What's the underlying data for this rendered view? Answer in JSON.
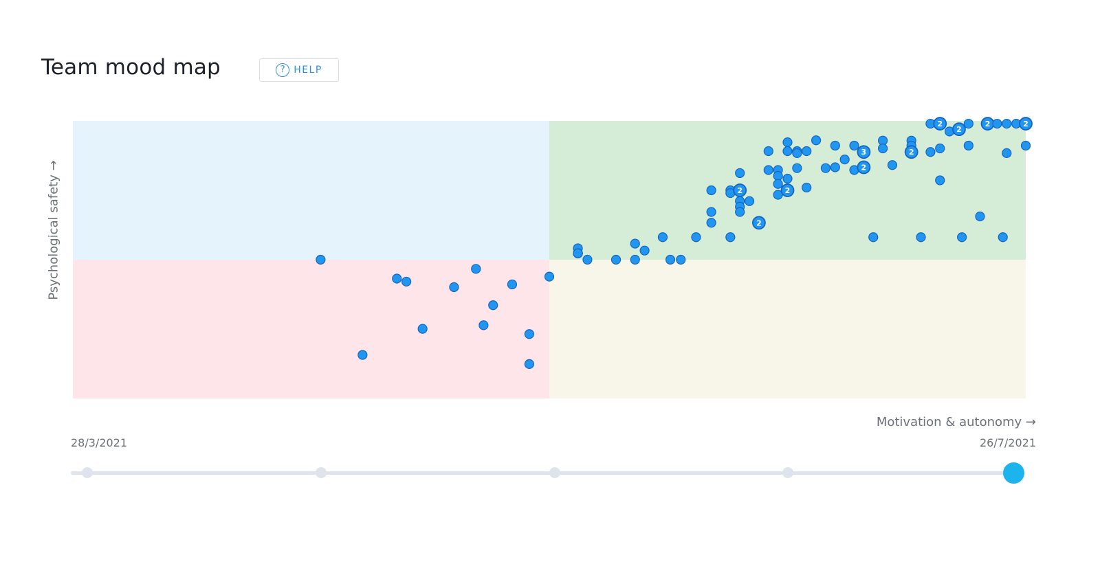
{
  "header": {
    "title": "Team mood map",
    "help_label": "HELP",
    "help_icon": "question-circle-icon",
    "accent_color": "#2f8fe8"
  },
  "chart_data": {
    "type": "scatter",
    "title": "",
    "xlabel": "Motivation & autonomy →",
    "ylabel": "Psychological safety →",
    "xlim": [
      0,
      100
    ],
    "ylim": [
      0,
      100
    ],
    "grid": false,
    "quadrants": [
      {
        "name": "low-motivation-high-safety",
        "color": "#e5f3fd"
      },
      {
        "name": "high-motivation-high-safety",
        "color": "#d5edd7"
      },
      {
        "name": "low-motivation-low-safety",
        "color": "#fde5ea"
      },
      {
        "name": "high-motivation-low-safety",
        "color": "#f7f6e8"
      }
    ],
    "point_color": "#2196f0",
    "point_stroke": "#1565c0",
    "points": [
      {
        "x": 26.0,
        "y": 50.0
      },
      {
        "x": 30.4,
        "y": 15.7
      },
      {
        "x": 34.0,
        "y": 43.2
      },
      {
        "x": 35.0,
        "y": 42.1
      },
      {
        "x": 36.7,
        "y": 25.1
      },
      {
        "x": 40.0,
        "y": 40.1
      },
      {
        "x": 42.3,
        "y": 46.7
      },
      {
        "x": 43.1,
        "y": 26.4
      },
      {
        "x": 44.1,
        "y": 33.6
      },
      {
        "x": 46.1,
        "y": 41.1
      },
      {
        "x": 47.9,
        "y": 23.2
      },
      {
        "x": 47.9,
        "y": 12.4
      },
      {
        "x": 50.0,
        "y": 43.9
      },
      {
        "x": 53.0,
        "y": 54.1
      },
      {
        "x": 53.0,
        "y": 52.3
      },
      {
        "x": 53.0,
        "y": 52.3
      },
      {
        "x": 53.0,
        "y": 52.3
      },
      {
        "x": 53.0,
        "y": 52.3
      },
      {
        "x": 53.0,
        "y": 52.3
      },
      {
        "x": 53.0,
        "y": 52.3
      },
      {
        "x": 53.0,
        "y": 52.3
      },
      {
        "x": 53.0,
        "y": 52.3
      },
      {
        "x": 54.0,
        "y": 50.0
      },
      {
        "x": 57.0,
        "y": 50.0
      },
      {
        "x": 59.0,
        "y": 55.8
      },
      {
        "x": 59.0,
        "y": 50.0
      },
      {
        "x": 60.0,
        "y": 53.3
      },
      {
        "x": 61.9,
        "y": 58.1
      },
      {
        "x": 62.7,
        "y": 50.0
      },
      {
        "x": 63.8,
        "y": 50.0
      },
      {
        "x": 65.4,
        "y": 58.1
      },
      {
        "x": 67.0,
        "y": 75.0
      },
      {
        "x": 67.0,
        "y": 67.2
      },
      {
        "x": 67.0,
        "y": 63.3
      },
      {
        "x": 69.0,
        "y": 75.0
      },
      {
        "x": 69.0,
        "y": 74.0
      },
      {
        "x": 69.0,
        "y": 58.1
      },
      {
        "x": 70.0,
        "y": 81.2
      },
      {
        "x": 70.0,
        "y": 75.0,
        "n": 2
      },
      {
        "x": 70.0,
        "y": 71.1
      },
      {
        "x": 70.0,
        "y": 69.1
      },
      {
        "x": 70.0,
        "y": 67.2
      },
      {
        "x": 71.0,
        "y": 71.1
      },
      {
        "x": 72.0,
        "y": 63.3,
        "n": 2
      },
      {
        "x": 73.0,
        "y": 89.1
      },
      {
        "x": 73.0,
        "y": 82.3
      },
      {
        "x": 74.0,
        "y": 82.3
      },
      {
        "x": 74.0,
        "y": 80.2
      },
      {
        "x": 74.0,
        "y": 77.3
      },
      {
        "x": 74.0,
        "y": 73.4
      },
      {
        "x": 75.0,
        "y": 92.3
      },
      {
        "x": 75.0,
        "y": 89.1
      },
      {
        "x": 75.0,
        "y": 79.2
      },
      {
        "x": 75.0,
        "y": 75.0,
        "n": 2
      },
      {
        "x": 76.0,
        "y": 89.1
      },
      {
        "x": 76.0,
        "y": 88.4
      },
      {
        "x": 76.0,
        "y": 83.0
      },
      {
        "x": 77.0,
        "y": 89.1
      },
      {
        "x": 77.0,
        "y": 76.0
      },
      {
        "x": 78.0,
        "y": 93.0
      },
      {
        "x": 79.0,
        "y": 83.0
      },
      {
        "x": 80.0,
        "y": 91.1
      },
      {
        "x": 80.0,
        "y": 83.3
      },
      {
        "x": 81.0,
        "y": 86.1
      },
      {
        "x": 82.0,
        "y": 91.1
      },
      {
        "x": 82.0,
        "y": 82.3
      },
      {
        "x": 83.0,
        "y": 88.8,
        "n": 3
      },
      {
        "x": 83.0,
        "y": 83.3,
        "n": 2
      },
      {
        "x": 84.0,
        "y": 58.1
      },
      {
        "x": 85.0,
        "y": 92.9
      },
      {
        "x": 85.0,
        "y": 90.1
      },
      {
        "x": 86.0,
        "y": 84.1
      },
      {
        "x": 88.0,
        "y": 92.9
      },
      {
        "x": 88.0,
        "y": 91.1
      },
      {
        "x": 88.0,
        "y": 88.8,
        "n": 2
      },
      {
        "x": 89.0,
        "y": 58.1
      },
      {
        "x": 90.0,
        "y": 99.0
      },
      {
        "x": 90.0,
        "y": 88.8
      },
      {
        "x": 91.0,
        "y": 99.0,
        "n": 2
      },
      {
        "x": 91.0,
        "y": 90.1
      },
      {
        "x": 91.0,
        "y": 78.6
      },
      {
        "x": 92.0,
        "y": 96.2
      },
      {
        "x": 93.0,
        "y": 97.0,
        "n": 2
      },
      {
        "x": 93.3,
        "y": 58.1
      },
      {
        "x": 94.0,
        "y": 99.0
      },
      {
        "x": 94.0,
        "y": 91.1
      },
      {
        "x": 95.2,
        "y": 65.6
      },
      {
        "x": 96.0,
        "y": 99.0,
        "n": 2
      },
      {
        "x": 97.0,
        "y": 99.0
      },
      {
        "x": 97.6,
        "y": 58.1
      },
      {
        "x": 98.0,
        "y": 99.0
      },
      {
        "x": 98.0,
        "y": 88.4
      },
      {
        "x": 99.0,
        "y": 99.0
      },
      {
        "x": 100.0,
        "y": 99.0,
        "n": 2
      },
      {
        "x": 100.0,
        "y": 91.1
      }
    ]
  },
  "timeline": {
    "start_label": "28/3/2021",
    "end_label": "26/7/2021",
    "selected_position": 1.0
  }
}
